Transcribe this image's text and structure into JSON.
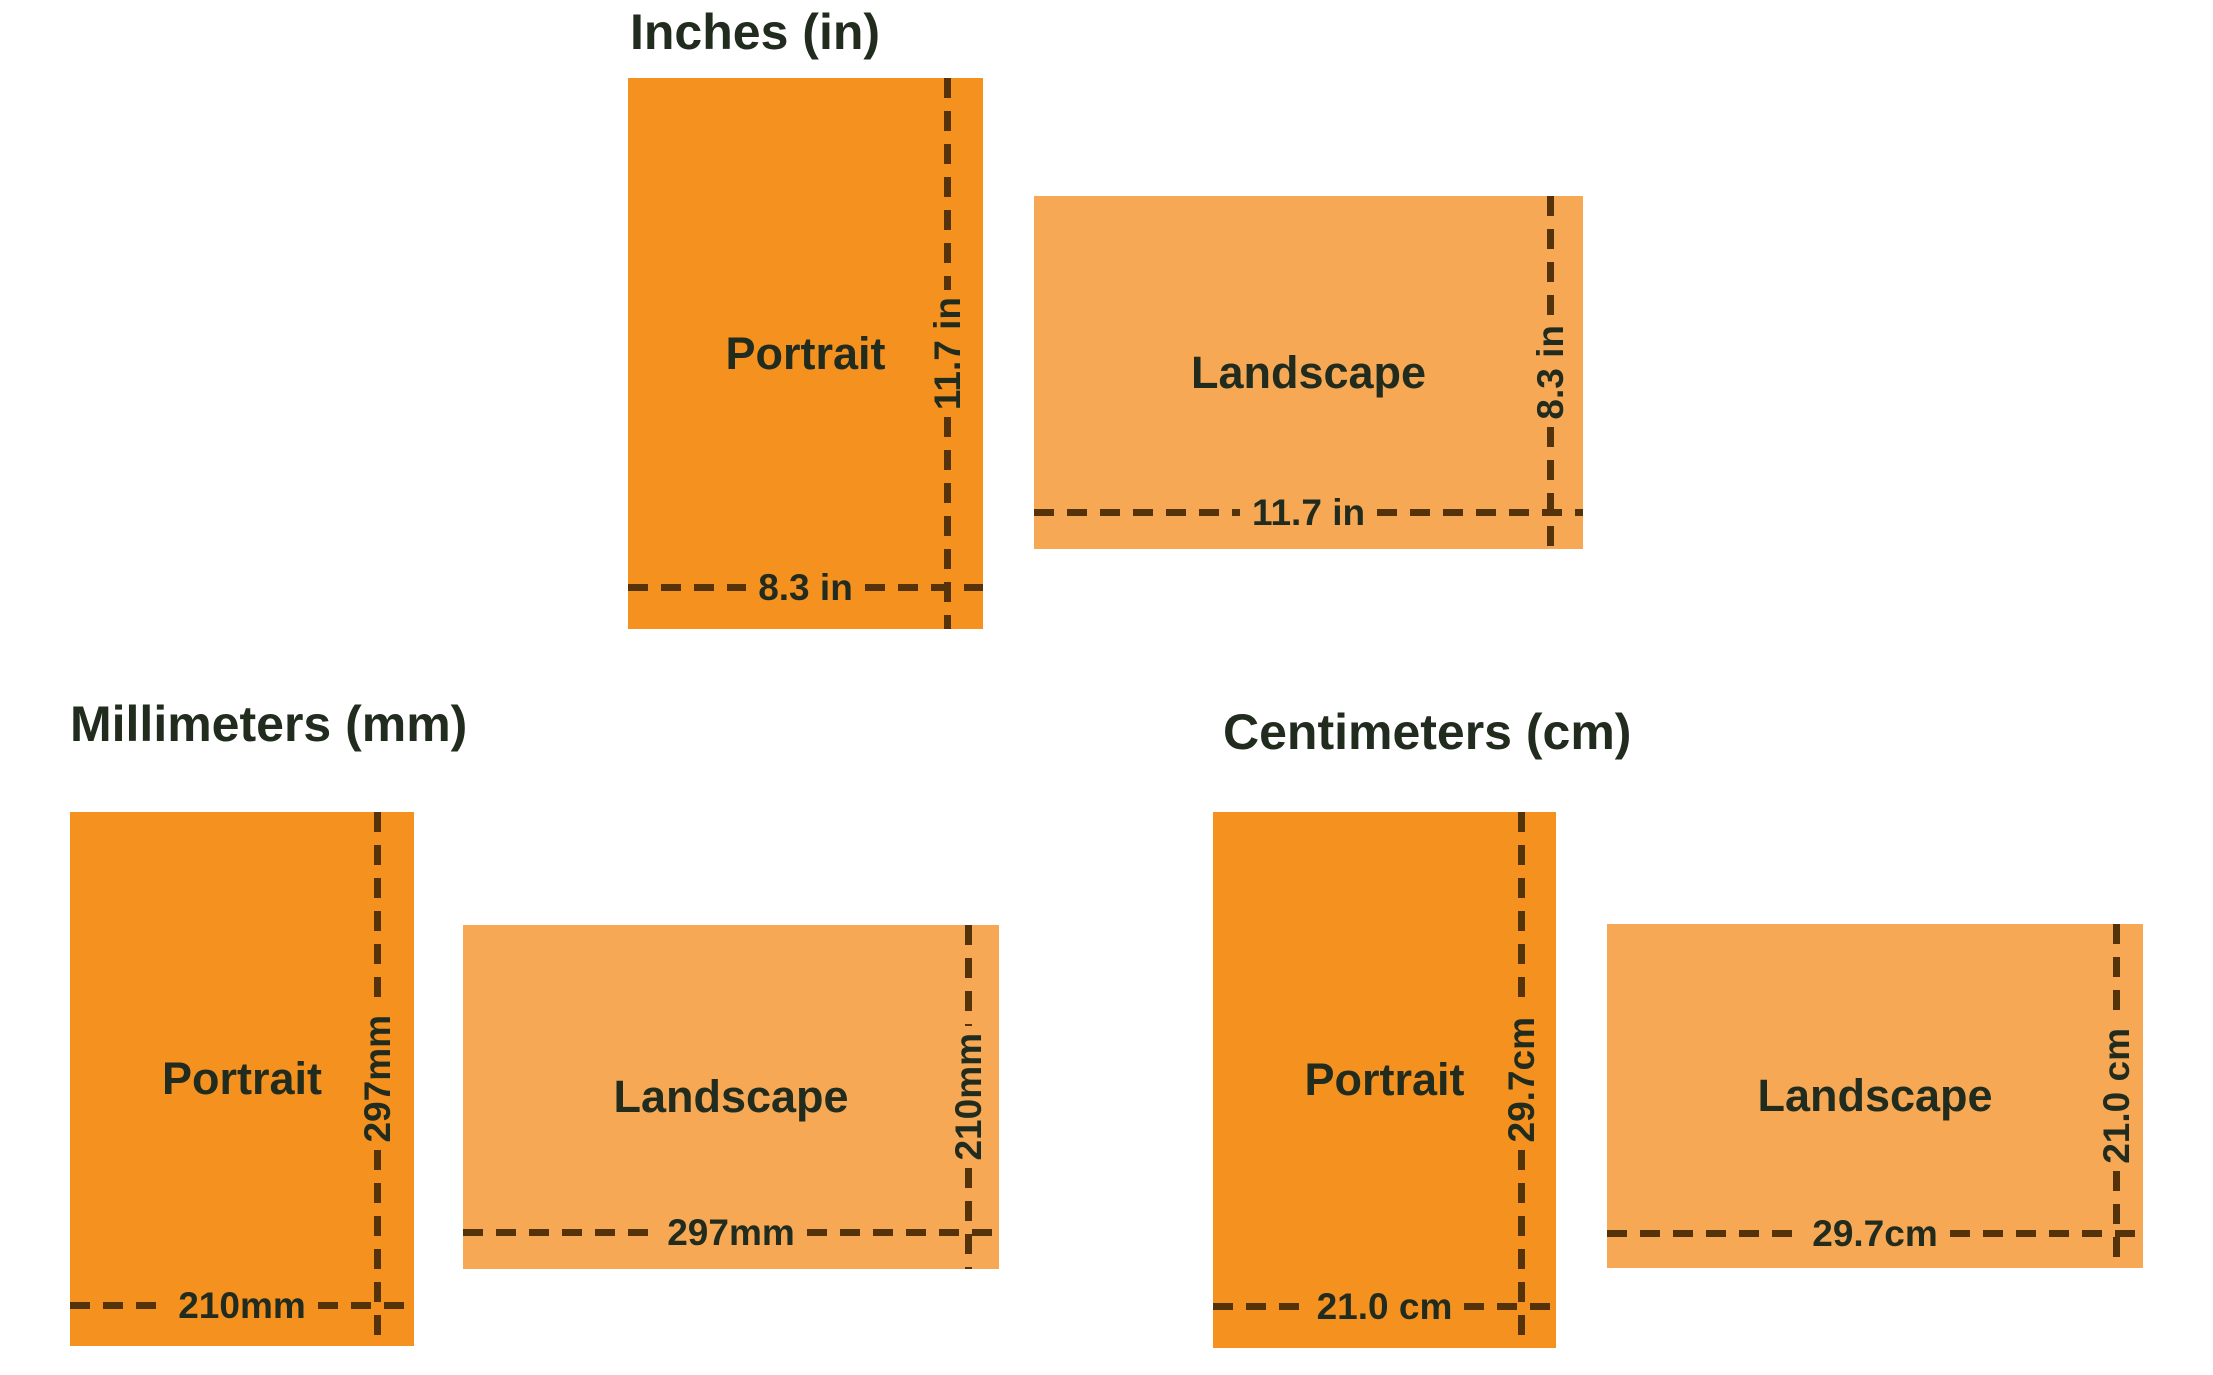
{
  "palette": {
    "portrait_fill": "#F5911E",
    "landscape_fill": "#F6A854",
    "dash_color": "#54330A",
    "text_color": "#212C1F",
    "background": "#FFFFFF"
  },
  "sections": [
    {
      "title": "Inches (in)",
      "portrait": {
        "label": "Portrait",
        "height_value": "11.7 in",
        "width_value": "8.3 in"
      },
      "landscape": {
        "label": "Landscape",
        "height_value": "8.3 in",
        "width_value": "11.7 in"
      }
    },
    {
      "title": "Millimeters (mm)",
      "portrait": {
        "label": "Portrait",
        "height_value": "297mm",
        "width_value": "210mm"
      },
      "landscape": {
        "label": "Landscape",
        "height_value": "210mm",
        "width_value": "297mm"
      }
    },
    {
      "title": "Centimeters (cm)",
      "portrait": {
        "label": "Portrait",
        "height_value": "29.7cm",
        "width_value": "21.0 cm"
      },
      "landscape": {
        "label": "Landscape",
        "height_value": "21.0 cm",
        "width_value": "29.7cm"
      }
    }
  ]
}
